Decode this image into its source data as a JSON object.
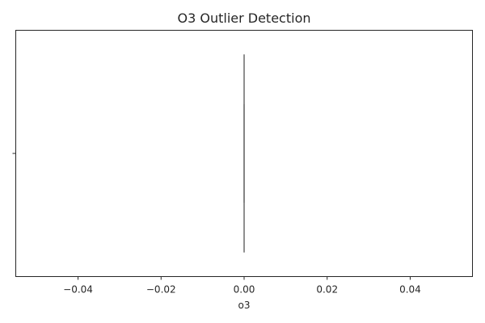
{
  "chart_data": {
    "type": "boxplot",
    "title": "O3 Outlier Detection",
    "xlabel": "o3",
    "ylabel": "",
    "xlim": [
      -0.055,
      0.055
    ],
    "xticks": [
      -0.04,
      -0.02,
      0.0,
      0.02,
      0.04
    ],
    "xtick_labels": [
      "−0.04",
      "−0.02",
      "0.00",
      "0.02",
      "0.04"
    ],
    "orientation": "horizontal",
    "grid": false,
    "box": {
      "min": 0,
      "q1": 0,
      "median": 0,
      "q3": 0,
      "max": 0
    },
    "colors": {
      "box_edge": "#808080",
      "text": "#262626",
      "axis": "#262626"
    }
  }
}
